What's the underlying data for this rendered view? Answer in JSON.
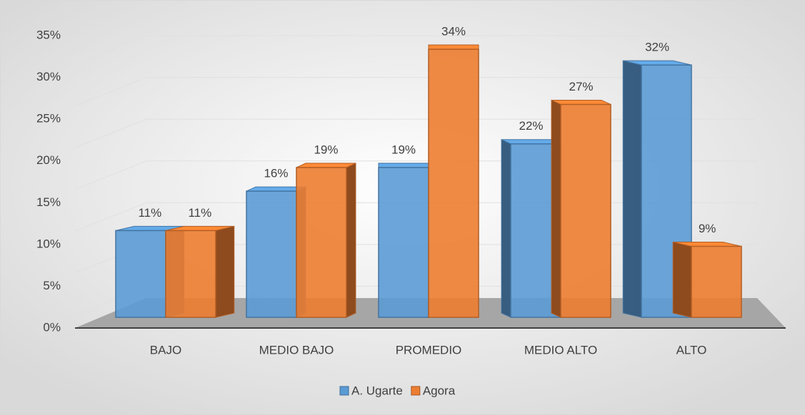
{
  "chart_data": {
    "type": "bar",
    "categories": [
      "BAJO",
      "MEDIO BAJO",
      "PROMEDIO",
      "MEDIO ALTO",
      "ALTO"
    ],
    "series": [
      {
        "name": "A. Ugarte",
        "color": "#5b9bd5",
        "values": [
          11,
          16,
          19,
          22,
          32
        ],
        "value_labels": [
          "11%",
          "16%",
          "19%",
          "22%",
          "32%"
        ]
      },
      {
        "name": "Agora",
        "color": "#ed7d31",
        "values": [
          11,
          19,
          34,
          27,
          9
        ],
        "value_labels": [
          "11%",
          "19%",
          "34%",
          "27%",
          "9%"
        ]
      }
    ],
    "ylim": [
      0,
      35
    ],
    "yticks": [
      {
        "value": 0,
        "label": "0%"
      },
      {
        "value": 5,
        "label": "5%"
      },
      {
        "value": 10,
        "label": "10%"
      },
      {
        "value": 15,
        "label": "15%"
      },
      {
        "value": 20,
        "label": "20%"
      },
      {
        "value": 25,
        "label": "25%"
      },
      {
        "value": 30,
        "label": "30%"
      },
      {
        "value": 35,
        "label": "35%"
      }
    ],
    "grid": true,
    "legend": "bottom"
  }
}
